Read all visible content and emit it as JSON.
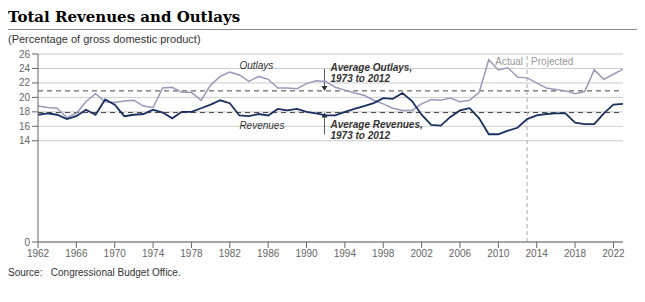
{
  "chart_data": {
    "type": "line",
    "title": "Total Revenues and Outlays",
    "subtitle": "(Percentage of gross domestic product)",
    "source": "Source:   Congressional Budget Office.",
    "x": [
      1962,
      1963,
      1964,
      1965,
      1966,
      1967,
      1968,
      1969,
      1970,
      1971,
      1972,
      1973,
      1974,
      1975,
      1976,
      1977,
      1978,
      1979,
      1980,
      1981,
      1982,
      1983,
      1984,
      1985,
      1986,
      1987,
      1988,
      1989,
      1990,
      1991,
      1992,
      1993,
      1994,
      1995,
      1996,
      1997,
      1998,
      1999,
      2000,
      2001,
      2002,
      2003,
      2004,
      2005,
      2006,
      2007,
      2008,
      2009,
      2010,
      2011,
      2012,
      2013,
      2014,
      2015,
      2016,
      2017,
      2018,
      2019,
      2020,
      2021,
      2022,
      2023
    ],
    "series": [
      {
        "name": "Outlays",
        "color": "#9999bb",
        "values": [
          18.8,
          18.6,
          18.5,
          17.2,
          17.8,
          19.4,
          20.5,
          19.4,
          19.3,
          19.5,
          19.6,
          18.8,
          18.6,
          21.3,
          21.4,
          20.7,
          20.7,
          19.6,
          21.7,
          22.9,
          23.5,
          23.1,
          22.2,
          22.9,
          22.5,
          21.3,
          21.3,
          21.2,
          21.9,
          22.3,
          22.2,
          21.4,
          21.0,
          20.6,
          20.3,
          19.6,
          19.1,
          18.5,
          18.2,
          18.2,
          19.1,
          19.7,
          19.6,
          19.9,
          19.4,
          19.6,
          20.7,
          25.2,
          23.8,
          24.1,
          22.8,
          22.7,
          22.0,
          21.3,
          21.1,
          20.9,
          20.5,
          20.8,
          23.8,
          22.5,
          23.2,
          23.9
        ]
      },
      {
        "name": "Revenues",
        "color": "#1a3060",
        "values": [
          17.6,
          17.8,
          17.6,
          17.0,
          17.4,
          18.3,
          17.6,
          19.7,
          19.0,
          17.4,
          17.6,
          17.7,
          18.3,
          17.9,
          17.1,
          18.0,
          18.0,
          18.5,
          19.0,
          19.6,
          19.2,
          17.5,
          17.4,
          17.7,
          17.5,
          18.4,
          18.2,
          18.4,
          18.0,
          17.8,
          17.5,
          17.5,
          18.0,
          18.4,
          18.8,
          19.2,
          19.9,
          19.8,
          20.6,
          19.5,
          17.6,
          16.2,
          16.1,
          17.3,
          18.2,
          18.5,
          17.1,
          14.9,
          14.9,
          15.4,
          15.8,
          17.0,
          17.5,
          17.7,
          17.8,
          17.8,
          16.5,
          16.3,
          16.3,
          17.8,
          19.0,
          19.1
        ]
      }
    ],
    "xlim": [
      1962,
      2023
    ],
    "ylim": [
      0,
      26
    ],
    "xticks": [
      1962,
      1966,
      1970,
      1974,
      1978,
      1982,
      1986,
      1990,
      1994,
      1998,
      2002,
      2006,
      2010,
      2014,
      2018,
      2022
    ],
    "yticks": [
      0,
      14,
      16,
      18,
      20,
      22,
      24,
      26
    ],
    "grid": true,
    "reference_lines": [
      {
        "y": 20.9,
        "label": "Average Outlays,\n1973 to 2012",
        "color": "#444444"
      },
      {
        "y": 17.9,
        "label": "Average Revenues,\n1973 to 2012",
        "color": "#444444"
      }
    ],
    "projection": {
      "x": 2013,
      "labels": [
        "Actual",
        "Projected"
      ],
      "color": "#aaaaaa"
    }
  }
}
